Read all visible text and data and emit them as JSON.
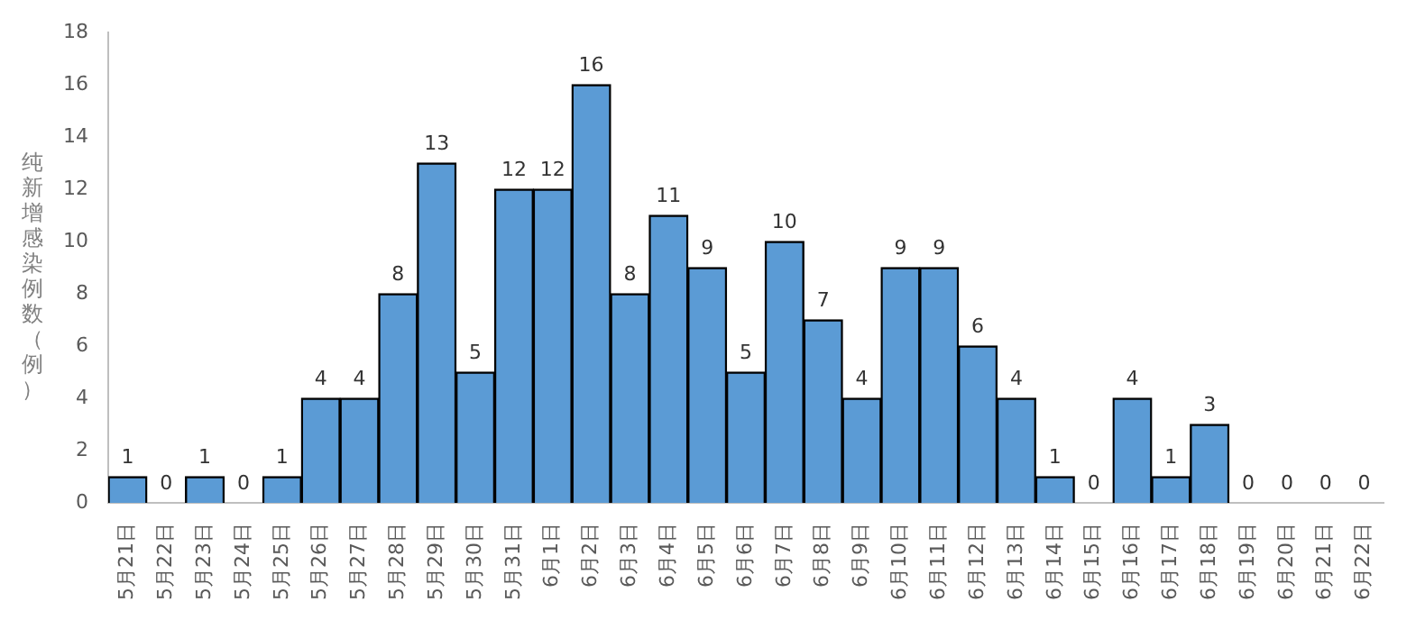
{
  "chart_data": {
    "type": "bar",
    "ylabel": "纯新增感染例数（例）",
    "categories": [
      "5月21日",
      "5月22日",
      "5月23日",
      "5月24日",
      "5月25日",
      "5月26日",
      "5月27日",
      "5月28日",
      "5月29日",
      "5月30日",
      "5月31日",
      "6月1日",
      "6月2日",
      "6月3日",
      "6月4日",
      "6月5日",
      "6月6日",
      "6月7日",
      "6月8日",
      "6月9日",
      "6月10日",
      "6月11日",
      "6月12日",
      "6月13日",
      "6月14日",
      "6月15日",
      "6月16日",
      "6月17日",
      "6月18日",
      "6月19日",
      "6月20日",
      "6月21日",
      "6月22日"
    ],
    "values": [
      1,
      0,
      1,
      0,
      1,
      4,
      4,
      8,
      13,
      5,
      12,
      12,
      16,
      8,
      11,
      9,
      5,
      10,
      7,
      4,
      9,
      9,
      6,
      4,
      1,
      0,
      4,
      1,
      3,
      0,
      0,
      0,
      0
    ],
    "color": "#5b9bd5",
    "ylim": [
      0,
      18
    ],
    "yticks": [
      0,
      2,
      4,
      6,
      8,
      10,
      12,
      14,
      16,
      18
    ],
    "grid": false,
    "data_labels": true,
    "legend": false
  }
}
